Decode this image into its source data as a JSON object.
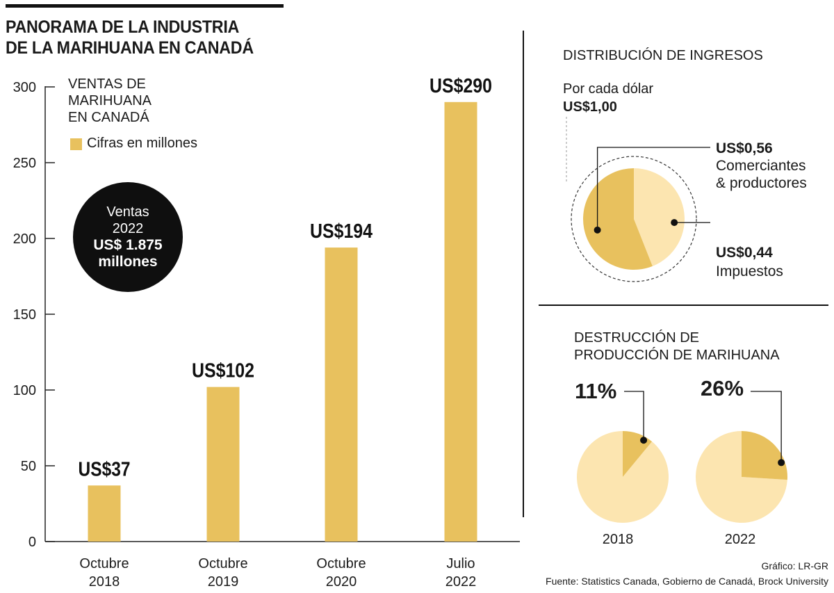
{
  "header": {
    "title_line1": "PANORAMA DE LA INDUSTRIA",
    "title_line2": "DE LA MARIHUANA EN CANADÁ"
  },
  "sales_panel": {
    "subtitle_line1": "VENTAS DE",
    "subtitle_line2": "MARIHUANA",
    "subtitle_line3": "EN CANADÁ",
    "legend_label": "Cifras en millones",
    "badge_line1": "Ventas",
    "badge_line2": "2022",
    "badge_line3": "US$ 1.875",
    "badge_line4": "millones"
  },
  "revenue_panel": {
    "title": "DISTRIBUCIÓN DE INGRESOS",
    "per_dollar_line1": "Por cada dólar",
    "per_dollar_line2": "US$1,00",
    "merchants_value": "US$0,56",
    "merchants_label_line1": "Comerciantes",
    "merchants_label_line2": "& productores",
    "taxes_value": "US$0,44",
    "taxes_label": "Impuestos"
  },
  "destruction_panel": {
    "title_line1": "DESTRUCCIÓN DE",
    "title_line2": "PRODUCCIÓN DE MARIHUANA",
    "pie1_pct": "11%",
    "pie1_year": "2018",
    "pie2_pct": "26%",
    "pie2_year": "2022"
  },
  "footer": {
    "credit": "Gráfico: LR-GR",
    "source": "Fuente: Statistics Canada, Gobierno de Canadá, Brock University"
  },
  "colors": {
    "bar": "#e8c15e",
    "pie_dark": "#e8c15e",
    "pie_light": "#fce5b0",
    "axis": "#222222"
  },
  "chart_data": [
    {
      "type": "bar",
      "categories": [
        "Octubre 2018",
        "Octubre 2019",
        "Octubre 2020",
        "Julio 2022"
      ],
      "category_lines": [
        [
          "Octubre",
          "2018"
        ],
        [
          "Octubre",
          "2019"
        ],
        [
          "Octubre",
          "2020"
        ],
        [
          "Julio",
          "2022"
        ]
      ],
      "series": [
        {
          "name": "Cifras en millones",
          "values": [
            37,
            102,
            194,
            290
          ]
        }
      ],
      "data_labels": [
        "US$37",
        "US$102",
        "US$194",
        "US$290"
      ],
      "yticks": [
        0,
        50,
        100,
        150,
        200,
        250,
        300
      ],
      "ylim": [
        0,
        300
      ],
      "title": "VENTAS DE MARIHUANA EN CANADÁ",
      "grid": false
    },
    {
      "type": "pie",
      "title": "DISTRIBUCIÓN DE INGRESOS",
      "slices": [
        {
          "label": "Comerciantes & productores",
          "value": 0.56
        },
        {
          "label": "Impuestos",
          "value": 0.44
        }
      ]
    },
    {
      "type": "pie",
      "title": "2018",
      "slices": [
        {
          "label": "11%",
          "value": 11
        },
        {
          "label": "",
          "value": 89
        }
      ]
    },
    {
      "type": "pie",
      "title": "2022",
      "slices": [
        {
          "label": "26%",
          "value": 26
        },
        {
          "label": "",
          "value": 74
        }
      ]
    }
  ]
}
